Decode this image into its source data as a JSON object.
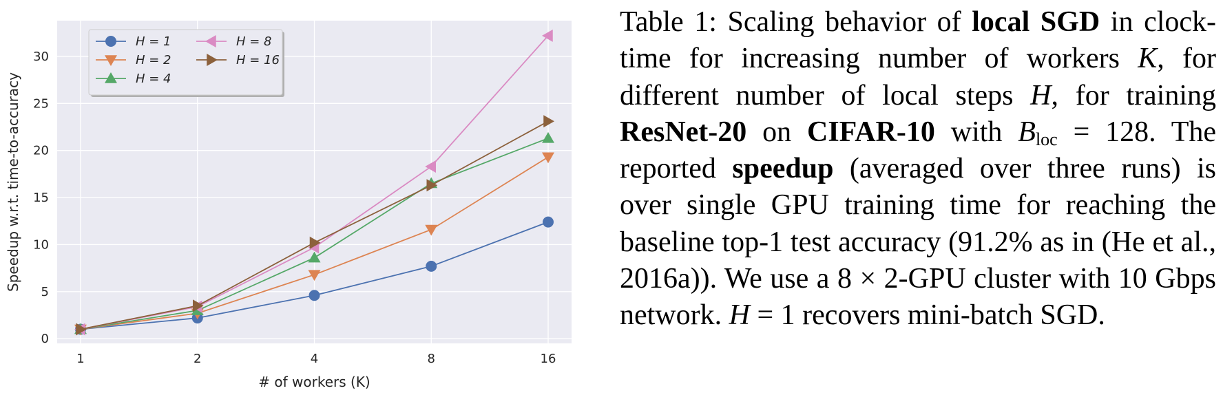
{
  "chart_data": {
    "type": "line",
    "x": [
      1,
      2,
      4,
      8,
      16
    ],
    "xscale": "log2",
    "xlabel": "# of workers (K)",
    "ylabel": "Speedup w.r.t. time-to-accuracy",
    "yticks": [
      0,
      5,
      10,
      15,
      20,
      25,
      30
    ],
    "ylim": [
      -0.5,
      33.8
    ],
    "grid": true,
    "legend_position": "upper-left",
    "series": [
      {
        "name": "H = 1",
        "marker": "circle",
        "color": "#4c72b0",
        "values": [
          1.0,
          2.2,
          4.6,
          7.7,
          12.4
        ]
      },
      {
        "name": "H = 2",
        "marker": "triangle-down",
        "color": "#dd8452",
        "values": [
          1.0,
          2.7,
          6.8,
          11.6,
          19.3
        ]
      },
      {
        "name": "H = 4",
        "marker": "triangle-up",
        "color": "#55a868",
        "values": [
          1.0,
          3.0,
          8.6,
          16.5,
          21.3
        ]
      },
      {
        "name": "H = 8",
        "marker": "triangle-left",
        "color": "#da8bc3",
        "values": [
          1.0,
          3.4,
          9.7,
          18.3,
          32.2
        ]
      },
      {
        "name": "H = 16",
        "marker": "triangle-right",
        "color": "#8c613c",
        "values": [
          1.0,
          3.5,
          10.2,
          16.3,
          23.1
        ]
      }
    ]
  },
  "caption": {
    "label": "Table 1:",
    "t1": " Scaling behavior of ",
    "b1": "local SGD",
    "t2": " in clock-time for increasing number of workers ",
    "m1": "K",
    "t3": ", for different number of local steps ",
    "m2": "H",
    "t4": ", for training ",
    "b2": "ResNet-20",
    "t5": " on ",
    "b3": "CIFAR-10",
    "t6": " with ",
    "m3": "B",
    "m3sub": "loc",
    "m3rest": " = 128",
    "t7": ". The reported ",
    "b4": "speedup",
    "t8": " (averaged over three runs) is over single GPU training time for reaching the baseline top-1 test accuracy (91.2% as in (He et al., 2016a)). We use a 8 × 2-GPU cluster with 10 Gbps network. ",
    "m4": "H",
    "m4rest": " = 1",
    "t9": " recovers mini-batch SGD."
  }
}
